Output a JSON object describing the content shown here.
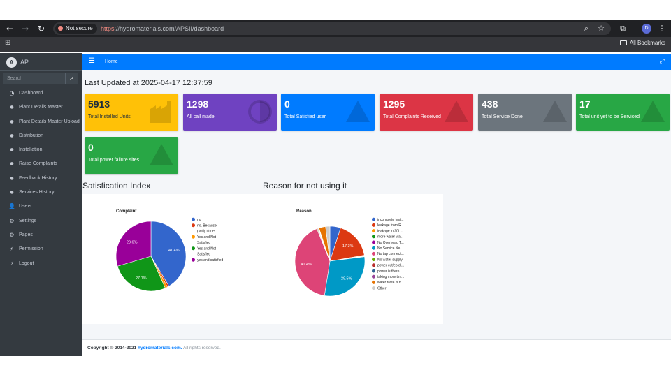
{
  "browser": {
    "security_label": "Not secure",
    "url_scheme": "https",
    "url_rest": "://hydromaterials.com/APSII/dashboard",
    "profile_initial": "D",
    "bookmarks_label": "All Bookmarks"
  },
  "sidebar": {
    "brand": "AP",
    "search_placeholder": "Search",
    "items": [
      {
        "label": "Dashboard",
        "icon": "dashboard-icon"
      },
      {
        "label": "Plant Details Master",
        "icon": "drop-icon"
      },
      {
        "label": "Plant Details Master Upload",
        "icon": "drop-icon"
      },
      {
        "label": "Distribution",
        "icon": "drop-icon"
      },
      {
        "label": "Installation",
        "icon": "drop-icon"
      },
      {
        "label": "Raise Complaints",
        "icon": "drop-icon"
      },
      {
        "label": "Feedback History",
        "icon": "drop-icon"
      },
      {
        "label": "Services History",
        "icon": "drop-icon"
      },
      {
        "label": "Users",
        "icon": "user-icon"
      },
      {
        "label": "Settings",
        "icon": "gear-icon"
      },
      {
        "label": "Pages",
        "icon": "gear-icon"
      },
      {
        "label": "Permission",
        "icon": "bolt-icon"
      },
      {
        "label": "Logout",
        "icon": "bolt-icon"
      }
    ]
  },
  "navbar": {
    "home": "Home"
  },
  "main": {
    "last_updated": "Last Updated at 2025-04-17 12:37:59",
    "boxes": [
      {
        "value": "5913",
        "label": "Total Installed Units",
        "color": "#ffc107",
        "icon": "factory-icon"
      },
      {
        "value": "1298",
        "label": "All call made",
        "color": "#6f42c1",
        "icon": "half-circle-icon"
      },
      {
        "value": "0",
        "label": "Total Satisfied user",
        "color": "#007bff",
        "icon": "warning-icon"
      },
      {
        "value": "1295",
        "label": "Total Complaints Received",
        "color": "#dc3545",
        "icon": "warning-icon"
      },
      {
        "value": "438",
        "label": "Total Service Done",
        "color": "#6c757d",
        "icon": "warning-icon"
      },
      {
        "value": "17",
        "label": "Total unit yet to be Serviced",
        "color": "#28a745",
        "icon": "warning-icon"
      },
      {
        "value": "0",
        "label": "Total power failure sites",
        "color": "#28a745",
        "icon": "warning-icon"
      }
    ],
    "satisfaction_title": "Satisfication Index",
    "reason_title": "Reason for not using it"
  },
  "chart_data": [
    {
      "type": "pie",
      "title": "Complaint",
      "categories": [
        "no",
        "no. Because partly done",
        "Yes and Not Satisfied",
        "Yes and Not Satisfied",
        "yes and satisfied"
      ],
      "values": [
        41.4,
        0.8,
        1.1,
        27.1,
        29.6
      ],
      "colors": [
        "#3366cc",
        "#dc3912",
        "#ff9900",
        "#109618",
        "#990099"
      ],
      "data_labels": [
        "41.4%",
        "",
        "",
        "27.1%",
        "29.6%"
      ],
      "legend_labels": [
        [
          "no"
        ],
        [
          "no. Because",
          "partly done"
        ],
        [
          "Yes and Not",
          "Satisfied"
        ],
        [
          "Yes and Not",
          "Satisfied"
        ],
        [
          "yes and satisfied"
        ]
      ],
      "legend_position": "right"
    },
    {
      "type": "pie",
      "title": "Reason",
      "categories": [
        "incomplete inst...",
        "leakage from R...",
        "leakage in 20L...",
        "more water wa...",
        "No Overhead T...",
        "No Service Ne...",
        "No tap connect...",
        "No water supply",
        "power cut/eb di...",
        "power is there...",
        "taking more tim...",
        "water taste is n...",
        "Other"
      ],
      "values": [
        5.0,
        17.3,
        0.3,
        0.2,
        0.2,
        29.5,
        41.4,
        0.3,
        0.3,
        0.2,
        0.2,
        3.1,
        2.0
      ],
      "colors": [
        "#3366cc",
        "#dc3912",
        "#ff9900",
        "#109618",
        "#990099",
        "#0099c6",
        "#dd4477",
        "#66aa00",
        "#b82e2e",
        "#316395",
        "#994499",
        "#e67300",
        "#cccccc"
      ],
      "data_labels": [
        "",
        "17.3%",
        "",
        "",
        "",
        "29.5%",
        "41.4%",
        "",
        "",
        "",
        "",
        "",
        ""
      ],
      "legend_position": "right"
    }
  ],
  "footer": {
    "prefix": "Copyright © 2014-2021 ",
    "link": "hydromaterials.com.",
    "suffix": " All rights reserved."
  }
}
